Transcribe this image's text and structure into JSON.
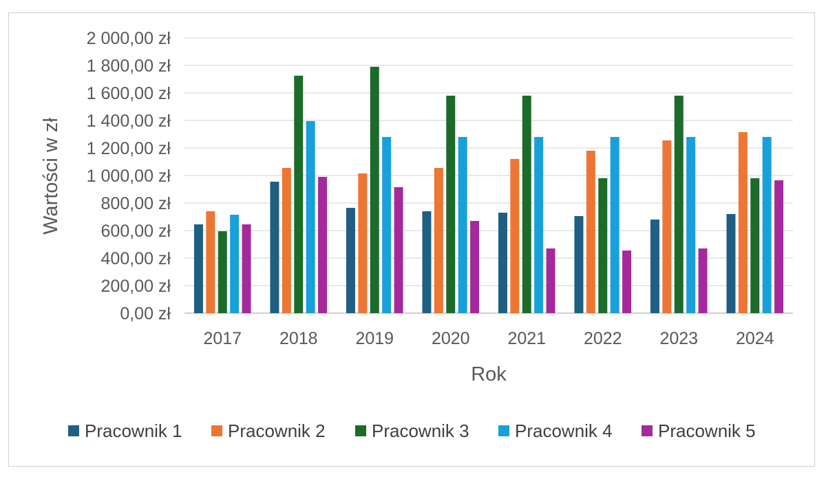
{
  "chart_data": {
    "type": "bar",
    "title": "",
    "xlabel": "Rok",
    "ylabel": "Wartości w zł",
    "ylim": [
      0,
      2000
    ],
    "ytick_values": [
      0,
      200,
      400,
      600,
      800,
      1000,
      1200,
      1400,
      1600,
      1800,
      2000
    ],
    "ytick_labels": [
      "0,00 zł",
      "200,00 zł",
      "400,00 zł",
      "600,00 zł",
      "800,00 zł",
      "1 000,00 zł",
      "1 200,00 zł",
      "1 400,00 zł",
      "1 600,00 zł",
      "1 800,00 zł",
      "2 000,00 zł"
    ],
    "categories": [
      "2017",
      "2018",
      "2019",
      "2020",
      "2021",
      "2022",
      "2023",
      "2024"
    ],
    "grid": true,
    "legend_position": "bottom",
    "series": [
      {
        "name": "Pracownik 1",
        "color": "#1f5f82",
        "values": [
          645,
          955,
          765,
          740,
          730,
          705,
          680,
          720
        ]
      },
      {
        "name": "Pracownik 2",
        "color": "#ed7634",
        "values": [
          740,
          1055,
          1015,
          1055,
          1120,
          1180,
          1255,
          1315
        ]
      },
      {
        "name": "Pracownik 3",
        "color": "#1d6b2a",
        "values": [
          595,
          1725,
          1790,
          1580,
          1580,
          980,
          1580,
          980
        ]
      },
      {
        "name": "Pracownik 4",
        "color": "#18a0da",
        "values": [
          715,
          1395,
          1280,
          1280,
          1280,
          1280,
          1280,
          1280
        ]
      },
      {
        "name": "Pracownik 5",
        "color": "#a42a9c",
        "values": [
          645,
          990,
          915,
          670,
          470,
          455,
          470,
          965
        ]
      }
    ]
  }
}
